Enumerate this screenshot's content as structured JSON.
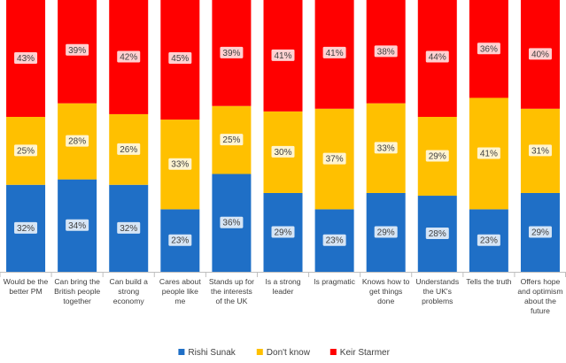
{
  "chart_data": {
    "type": "bar",
    "stacked": true,
    "percent_stacked": true,
    "title": "",
    "xlabel": "",
    "ylabel": "",
    "ylim": [
      0,
      100
    ],
    "grid": false,
    "legend_position": "bottom",
    "categories": [
      [
        "Would be the",
        "better PM"
      ],
      [
        "Can bring the",
        "British people",
        "together"
      ],
      [
        "Can build a",
        "strong",
        "economy"
      ],
      [
        "Cares about",
        "people like",
        "me"
      ],
      [
        "Stands up for",
        "the interests",
        "of the UK"
      ],
      [
        "Is a strong",
        "leader"
      ],
      [
        "Is pragmatic"
      ],
      [
        "Knows how to",
        "get things",
        "done"
      ],
      [
        "Understands",
        "the UK's",
        "problems"
      ],
      [
        "Tells the truth"
      ],
      [
        "Offers hope",
        "and optimism",
        "about the",
        "future"
      ]
    ],
    "series": [
      {
        "name": "Rishi Sunak",
        "color": "#1F6FC6",
        "values": [
          32,
          34,
          32,
          23,
          36,
          29,
          23,
          29,
          28,
          23,
          29
        ]
      },
      {
        "name": "Don't know",
        "color": "#FFC000",
        "values": [
          25,
          28,
          26,
          33,
          25,
          30,
          37,
          33,
          29,
          41,
          31
        ]
      },
      {
        "name": "Keir Starmer",
        "color": "#FF0000",
        "values": [
          43,
          39,
          42,
          45,
          39,
          41,
          41,
          38,
          44,
          36,
          40
        ]
      }
    ],
    "data_label_suffix": "%"
  }
}
